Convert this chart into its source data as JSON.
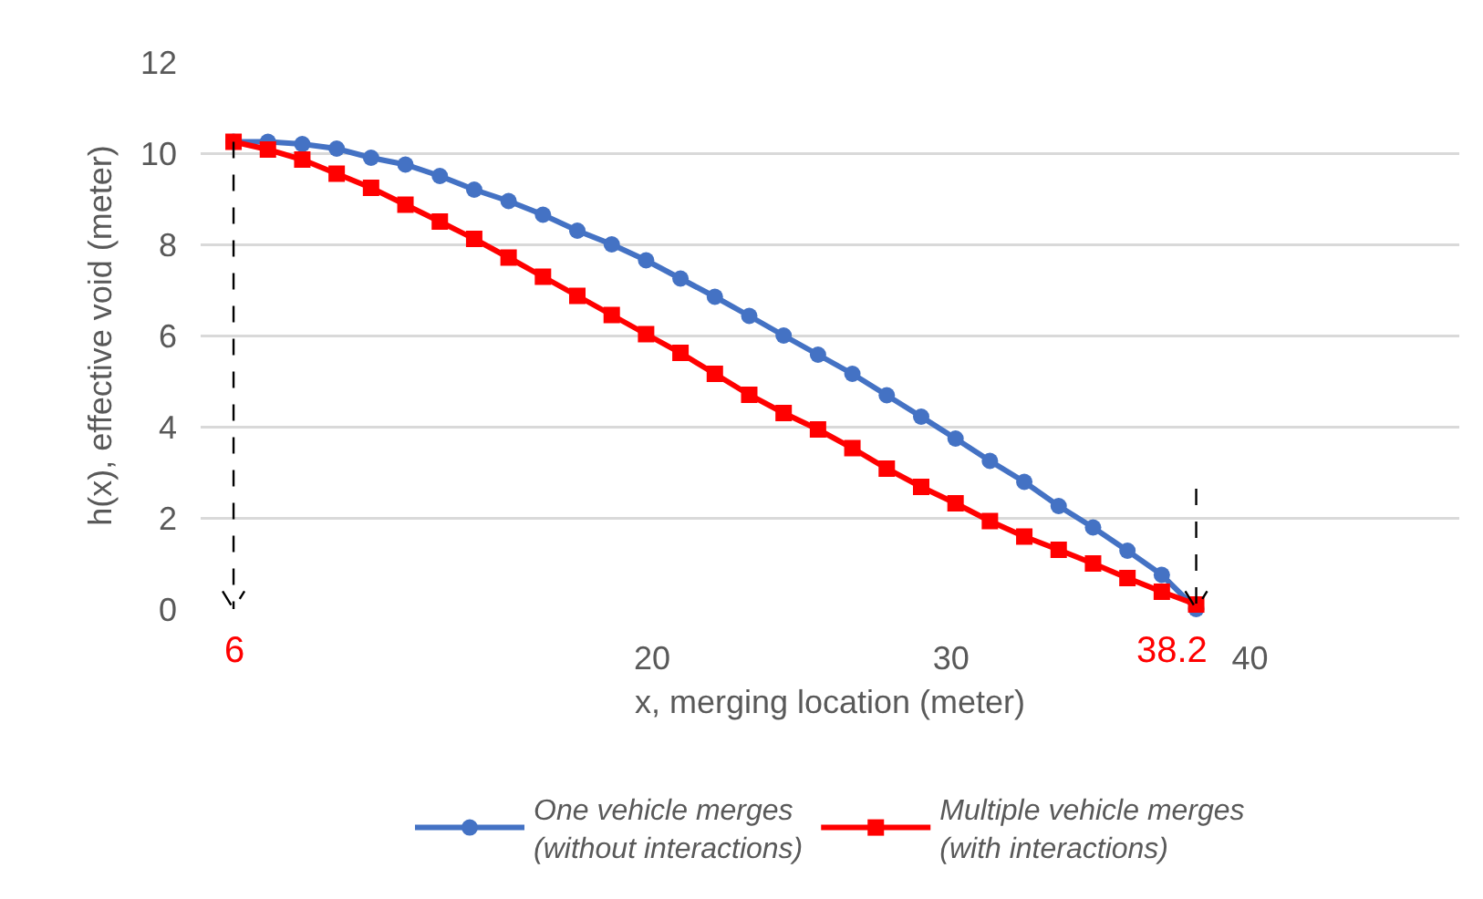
{
  "chart_data": {
    "type": "line",
    "xlabel": "x, merging location (meter)",
    "ylabel": "h(x), effective void (meter)",
    "x": [
      6,
      7.15,
      8.3,
      9.45,
      10.6,
      11.75,
      12.9,
      14.05,
      15.2,
      16.35,
      17.5,
      18.65,
      19.8,
      20.95,
      22.1,
      23.25,
      24.4,
      25.55,
      26.7,
      27.85,
      29,
      30.15,
      31.3,
      32.45,
      33.6,
      34.75,
      35.9,
      37.05,
      38.2
    ],
    "series": [
      {
        "name": "One vehicle merges\n(without interactions)",
        "color": "#4472c4",
        "marker": "circle",
        "values": [
          10.25,
          10.25,
          10.2,
          10.1,
          9.9,
          9.75,
          9.5,
          9.2,
          8.95,
          8.65,
          8.3,
          8.0,
          7.65,
          7.25,
          6.85,
          6.43,
          6.0,
          5.58,
          5.16,
          4.69,
          4.22,
          3.74,
          3.25,
          2.79,
          2.26,
          1.79,
          1.28,
          0.75,
          0
        ]
      },
      {
        "name": "Multiple vehicle merges\n(with interactions)",
        "color": "#ff0000",
        "marker": "square",
        "values": [
          10.25,
          10.08,
          9.86,
          9.55,
          9.24,
          8.87,
          8.5,
          8.12,
          7.71,
          7.29,
          6.87,
          6.45,
          6.03,
          5.62,
          5.16,
          4.7,
          4.3,
          3.94,
          3.53,
          3.08,
          2.68,
          2.32,
          1.93,
          1.59,
          1.3,
          1.0,
          0.68,
          0.38,
          0.1
        ]
      }
    ],
    "xlim": [
      4.9,
      47
    ],
    "xticks": [
      20,
      30,
      40
    ],
    "ylim": [
      0,
      12
    ],
    "yticks": [
      0,
      2,
      4,
      6,
      8,
      10,
      12
    ],
    "ref_lines": [
      {
        "axis": "x",
        "value": 6,
        "label": "6",
        "color": "#000000",
        "line_style": "dashed"
      },
      {
        "axis": "x",
        "value": 38.2,
        "label": "38.2",
        "color": "#000000",
        "line_style": "dashed"
      }
    ],
    "grid": "y",
    "legend": "bottom",
    "line_style": "solid"
  }
}
